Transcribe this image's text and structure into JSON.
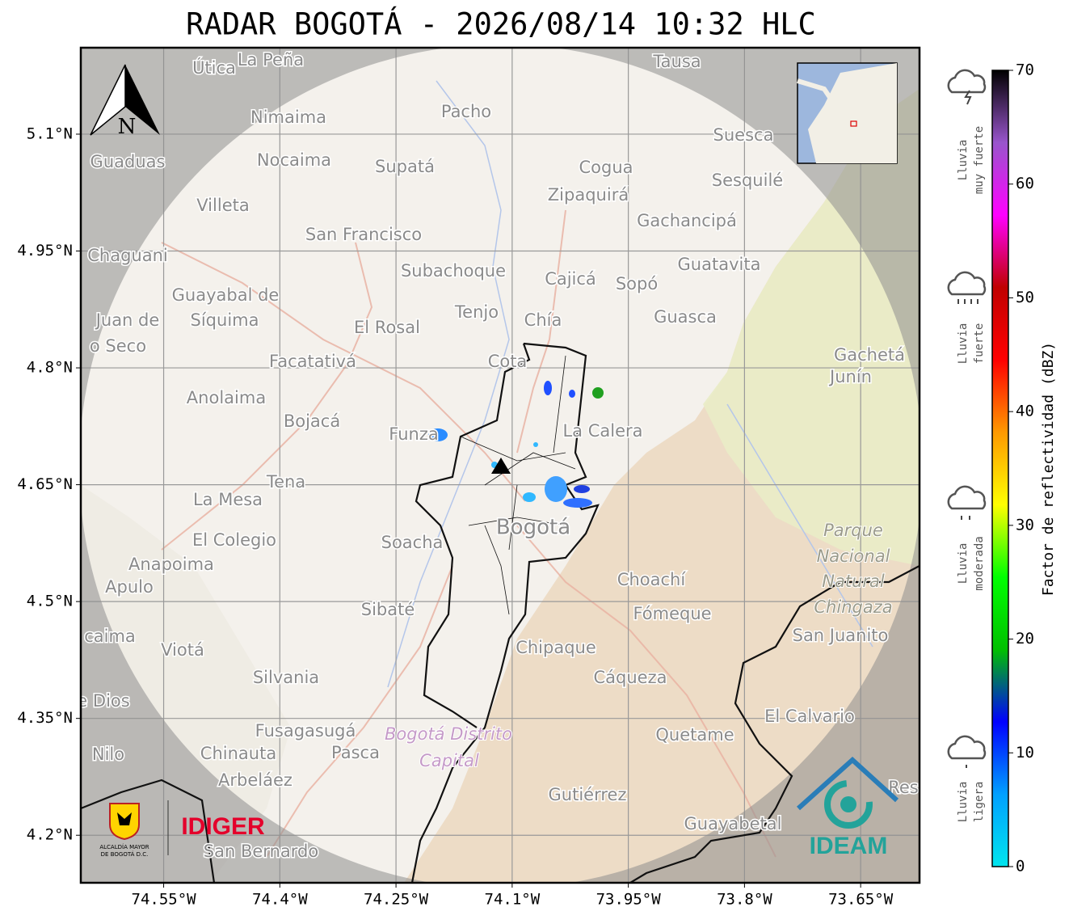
{
  "map": {
    "title": "RADAR BOGOTÁ - 2026/08/14 10:32 HLC",
    "xlim": [
      -74.657,
      -73.574
    ],
    "ylim": [
      4.139,
      5.211
    ],
    "xticks": [
      {
        "value": -74.55,
        "label": "74.55°W"
      },
      {
        "value": -74.4,
        "label": "74.4°W"
      },
      {
        "value": -74.25,
        "label": "74.25°W"
      },
      {
        "value": -74.1,
        "label": "74.1°W"
      },
      {
        "value": -73.95,
        "label": "73.95°W"
      },
      {
        "value": -73.8,
        "label": "73.8°W"
      },
      {
        "value": -73.65,
        "label": "73.65°W"
      }
    ],
    "yticks": [
      {
        "value": 4.2,
        "label": "4.2°N"
      },
      {
        "value": 4.35,
        "label": "4.35°N"
      },
      {
        "value": 4.5,
        "label": "4.5°N"
      },
      {
        "value": 4.65,
        "label": "4.65°N"
      },
      {
        "value": 4.8,
        "label": "4.8°N"
      },
      {
        "value": 4.95,
        "label": "4.95°N"
      },
      {
        "value": 5.1,
        "label": "5.1°N"
      }
    ],
    "grid": true,
    "north_label": "N",
    "places": [
      "Útica",
      "La Peña",
      "Tausa",
      "Pacho",
      "Nimaima",
      "Guaduas",
      "Nocaima",
      "Supatá",
      "Cogua",
      "Suesca",
      "Sesquilé",
      "Zipaquirá",
      "Villeta",
      "Gachancipá",
      "San Francisco",
      "Chaguani",
      "Guatavita",
      "Subachoque",
      "Cajicá",
      "Sopó",
      "Guayabal de",
      "Síquima",
      "Juan de",
      "Tenjo",
      "Chía",
      "Guasca",
      "El Rosal",
      "o Seco",
      "Facatativá",
      "Cota",
      "Gachetá",
      "Junín",
      "Anolaima",
      "Bojacá",
      "Funza",
      "La Calera",
      "Tena",
      "La Mesa",
      "Bogotá",
      "El Colegio",
      "Soacha",
      "Anapoima",
      "Apulo",
      "Choachí",
      "Sibaté",
      "Fómeque",
      "San Juanito",
      "caima",
      "Viotá",
      "Chipaque",
      "Cáqueza",
      "Silvania",
      "e Dios",
      "El Calvario",
      "Fusagasugá",
      "Quetame",
      "Nilo",
      "Chinauta",
      "Pasca",
      "Arbeláez",
      "Res",
      "Gutiérrez",
      "Guayabetal",
      "San Bernardo"
    ],
    "areas": [
      "Parque",
      "Nacional",
      "Natural",
      "Chingaza",
      "Bogotá Distrito",
      "Capital"
    ],
    "logos": {
      "idiger": "IDIGER",
      "alcaldia_1": "ALCALDÍA MAYOR",
      "alcaldia_2": "DE BOGOTÁ D.C.",
      "ideam": "IDEAM"
    }
  },
  "colorbar": {
    "label": "Factor de reflectividad (dBZ)",
    "lim": [
      0,
      70
    ],
    "ticks": [
      0,
      10,
      20,
      30,
      40,
      50,
      60,
      70
    ],
    "colors": [
      "#00e5ee",
      "#00a0ff",
      "#0000ff",
      "#00c000",
      "#00ff00",
      "#ffff00",
      "#ff9900",
      "#ff0000",
      "#c00000",
      "#ff00ff",
      "#9955cc",
      "#000000"
    ],
    "rain_levels": [
      [
        "Lluvia",
        "muy fuerte"
      ],
      [
        "Lluvia",
        "fuerte"
      ],
      [
        "Lluvia",
        "moderada"
      ],
      [
        "Lluvia",
        "ligera"
      ]
    ]
  }
}
